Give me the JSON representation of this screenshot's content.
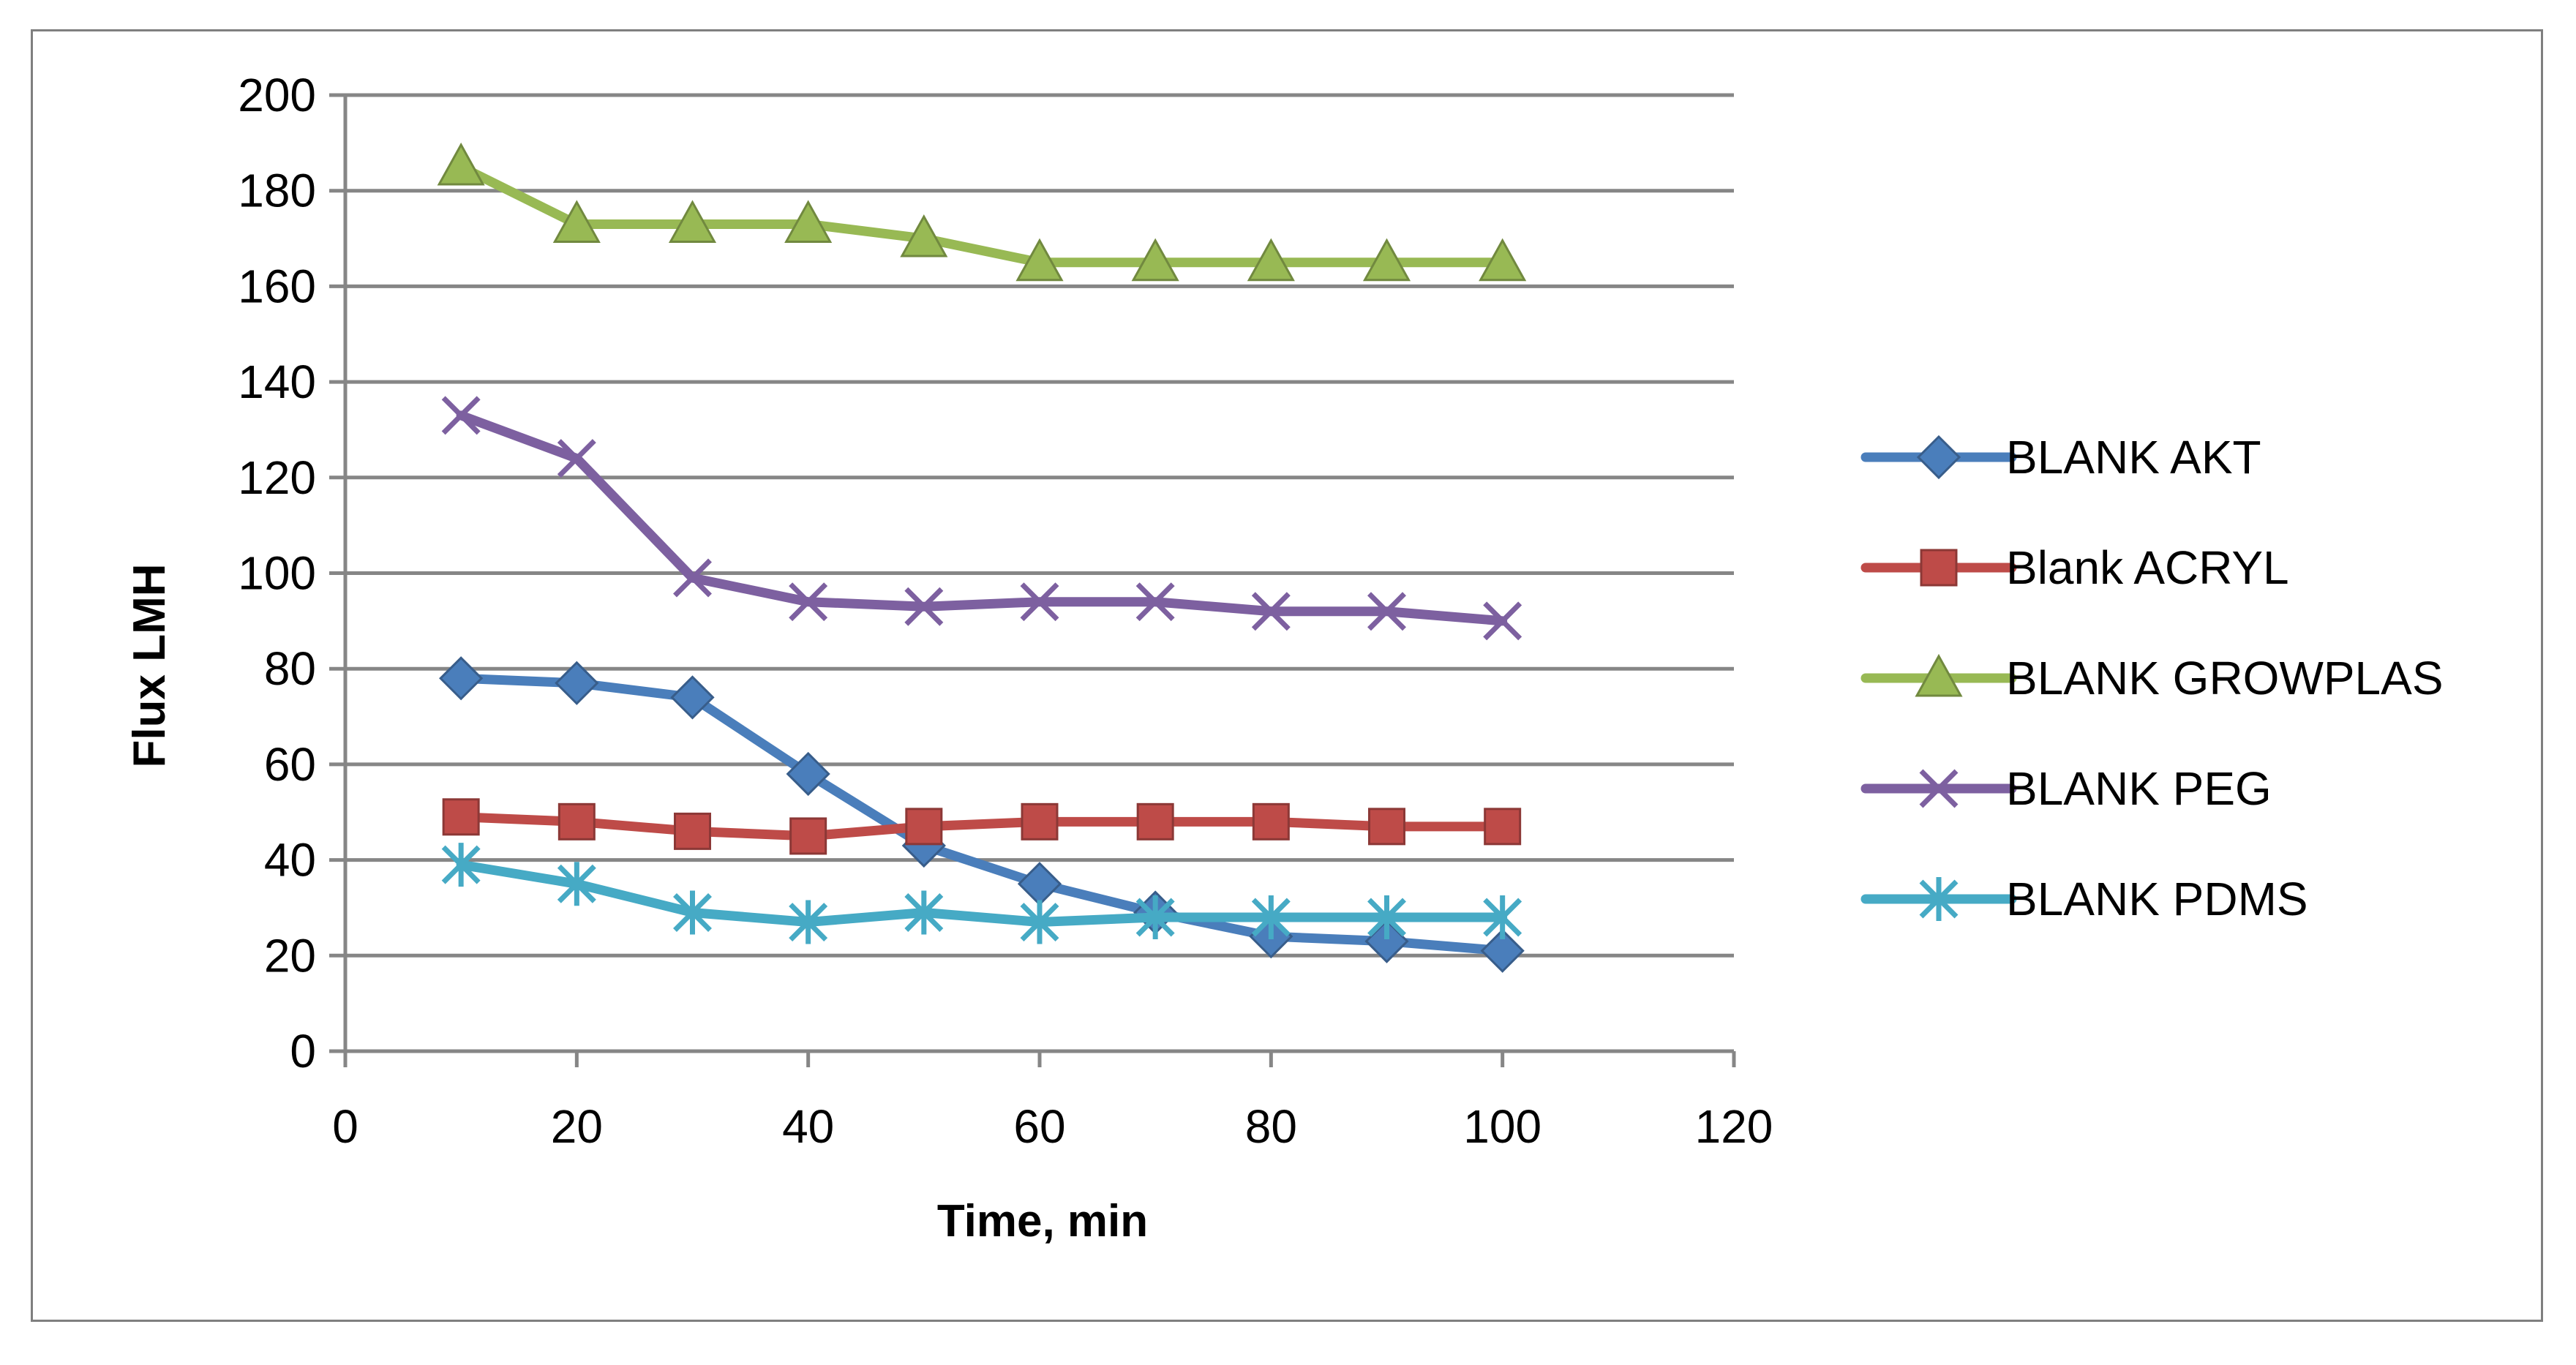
{
  "chart_data": {
    "type": "line",
    "title": "",
    "xlabel": "Time, min",
    "ylabel": "Flux LMH",
    "xlim": [
      0,
      120
    ],
    "ylim": [
      0,
      200
    ],
    "xticks": [
      0,
      20,
      40,
      60,
      80,
      100,
      120
    ],
    "yticks": [
      0,
      20,
      40,
      60,
      80,
      100,
      120,
      140,
      160,
      180,
      200
    ],
    "grid": "horizontal",
    "legend_position": "right",
    "x": [
      10,
      20,
      30,
      40,
      50,
      60,
      70,
      80,
      90,
      100
    ],
    "series": [
      {
        "name": "BLANK AKT",
        "color": "#4a7ebb",
        "marker": "diamond",
        "values": [
          78,
          77,
          74,
          58,
          43,
          35,
          29,
          24,
          23,
          21
        ]
      },
      {
        "name": "Blank ACRYL",
        "color": "#be4b48",
        "marker": "square",
        "values": [
          49,
          48,
          46,
          45,
          47,
          48,
          48,
          48,
          47,
          47
        ]
      },
      {
        "name": "BLANK GROWPLAS",
        "color": "#98b954",
        "marker": "triangle",
        "values": [
          185,
          173,
          173,
          173,
          170,
          165,
          165,
          165,
          165,
          165
        ]
      },
      {
        "name": "BLANK PEG",
        "color": "#7d60a0",
        "marker": "x",
        "values": [
          133,
          124,
          99,
          94,
          93,
          94,
          94,
          92,
          92,
          90
        ]
      },
      {
        "name": "BLANK PDMS",
        "color": "#46aac5",
        "marker": "star",
        "values": [
          39,
          35,
          29,
          27,
          29,
          27,
          28,
          28,
          28,
          28
        ]
      }
    ]
  }
}
